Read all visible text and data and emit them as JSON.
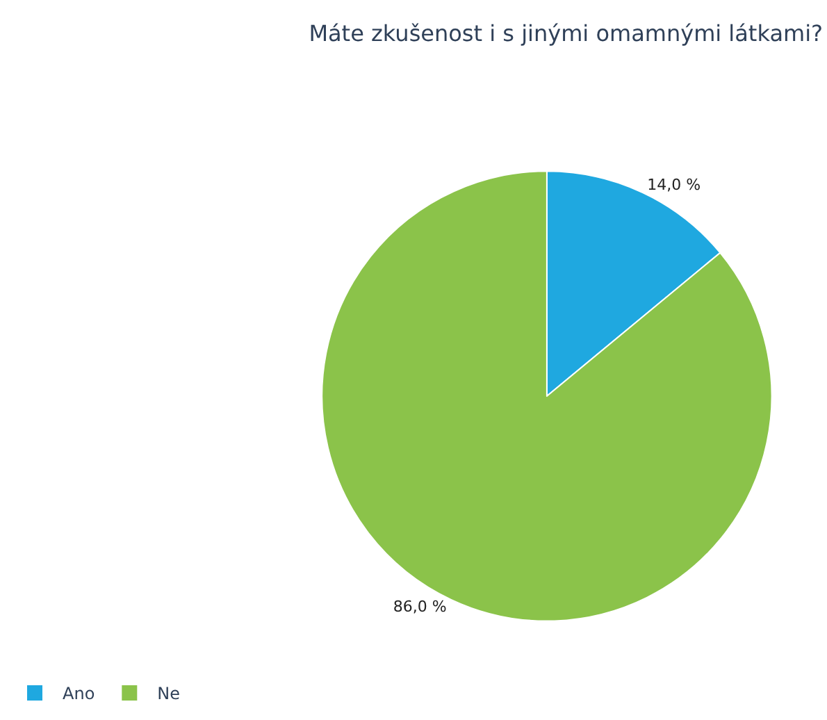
{
  "chart_data": {
    "type": "pie",
    "title": "Máte zkušenost i s jinými omamnými látkami?",
    "categories": [
      "Ano",
      "Ne"
    ],
    "values": [
      14,
      86
    ],
    "colors": [
      "#1fa8e0",
      "#8bc34a"
    ],
    "value_labels": [
      "14,0 %",
      "86,0 %"
    ],
    "legend": "bottom left"
  }
}
